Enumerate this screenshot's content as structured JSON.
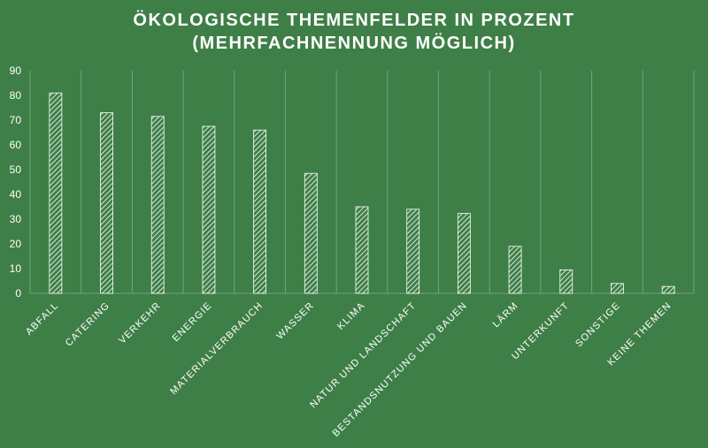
{
  "chart_data": {
    "type": "bar",
    "title": "ÖKOLOGISCHE THEMENFELDER IN PROZENT",
    "subtitle": "(MEHRFACHNENNUNG MÖGLICH)",
    "xlabel": "",
    "ylabel": "",
    "categories": [
      "ABFALL",
      "CATERING",
      "VERKEHR",
      "ENERGIE",
      "MATERIALVERBRAUCH",
      "WASSER",
      "KLIMA",
      "NATUR UND LANDSCHAFT",
      "BESTANDSNUTZUNG UND BAUEN",
      "LÄRM",
      "UNTERKUNFT",
      "SONSTIGE",
      "KEINE THEMEN"
    ],
    "values": [
      81,
      73,
      71.5,
      67.5,
      66,
      48.5,
      35,
      34,
      32.3,
      19,
      9.5,
      4,
      2.8
    ],
    "ylim": [
      0,
      90
    ],
    "yticks": [
      0,
      10,
      20,
      30,
      40,
      50,
      60,
      70,
      80,
      90
    ],
    "grid": "vertical",
    "bar_fill": "hatched",
    "colors": {
      "background": "#3e7f47",
      "bar_hatch": "#ffffff",
      "gridline": "#6fa477",
      "text": "#ffffff"
    }
  }
}
